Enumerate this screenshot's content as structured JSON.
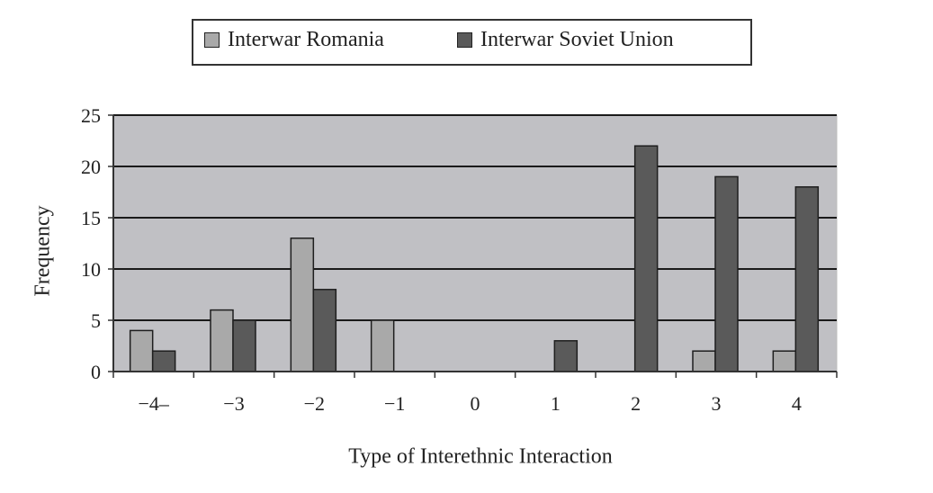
{
  "chart_data": {
    "type": "bar",
    "xlabel": "Type of Interethnic Interaction",
    "ylabel": "Frequency",
    "categories": [
      "−4–",
      "−3",
      "−2",
      "−1",
      "0",
      "1",
      "2",
      "3",
      "4"
    ],
    "series": [
      {
        "name": "Interwar Romania",
        "color": "#a9a9a9",
        "values": [
          4,
          6,
          13,
          5,
          0,
          0,
          0,
          2,
          2
        ]
      },
      {
        "name": "Interwar Soviet Union",
        "color": "#5a5a5a",
        "values": [
          2,
          5,
          8,
          0,
          0,
          3,
          22,
          19,
          18
        ]
      }
    ],
    "ylim": [
      0,
      25
    ],
    "yticks": [
      0,
      5,
      10,
      15,
      20,
      25
    ],
    "grid": true,
    "legend": "top-center",
    "plot_background": "#c0c0c4"
  }
}
